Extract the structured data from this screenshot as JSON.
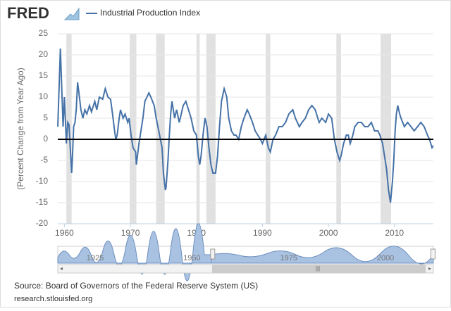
{
  "logo": "FRED",
  "chart_data": {
    "type": "line",
    "y_axis_label": "(Percent Change from Year Ago)",
    "series": [
      {
        "name": "Industrial Production Index",
        "color": "#4572a7",
        "x": [
          1959.0,
          1959.4,
          1959.8,
          1960.0,
          1960.3,
          1960.5,
          1960.7,
          1961.1,
          1961.2,
          1961.4,
          1961.6,
          1961.8,
          1962.0,
          1962.2,
          1962.5,
          1962.8,
          1963.1,
          1963.4,
          1963.8,
          1964.1,
          1964.6,
          1964.9,
          1965.3,
          1965.8,
          1966.2,
          1966.6,
          1967.0,
          1967.3,
          1967.6,
          1967.8,
          1968.0,
          1968.3,
          1968.5,
          1968.9,
          1969.2,
          1969.6,
          1969.8,
          1970.1,
          1970.4,
          1970.8,
          1970.9,
          1971.3,
          1971.6,
          1971.9,
          1972.2,
          1972.5,
          1972.8,
          1973.1,
          1973.6,
          1973.9,
          1974.3,
          1974.8,
          1975.0,
          1975.3,
          1975.4,
          1975.7,
          1975.9,
          1976.1,
          1976.3,
          1976.7,
          1977.0,
          1977.4,
          1977.7,
          1978.0,
          1978.4,
          1978.8,
          1979.2,
          1979.6,
          1980.0,
          1980.3,
          1980.5,
          1980.7,
          1981.0,
          1981.3,
          1981.6,
          1981.9,
          1982.2,
          1982.5,
          1982.9,
          1983.2,
          1983.5,
          1983.8,
          1984.2,
          1984.6,
          1984.9,
          1985.3,
          1985.7,
          1986.0,
          1986.4,
          1986.8,
          1987.2,
          1987.7,
          1988.0,
          1988.5,
          1988.9,
          1989.3,
          1989.7,
          1990.0,
          1990.5,
          1990.9,
          1991.2,
          1991.6,
          1992.0,
          1992.5,
          1993.0,
          1993.5,
          1994.0,
          1994.6,
          1995.0,
          1995.6,
          1996.0,
          1996.5,
          1997.0,
          1997.5,
          1998.0,
          1998.6,
          1999.0,
          1999.6,
          2000.0,
          2000.5,
          2000.9,
          2001.3,
          2001.7,
          2001.9,
          2002.3,
          2002.7,
          2003.0,
          2003.3,
          2003.7,
          2004.0,
          2004.5,
          2005.0,
          2005.5,
          2006.0,
          2006.5,
          2007.0,
          2007.5,
          2007.8,
          2008.2,
          2008.5,
          2008.8,
          2009.1,
          2009.4,
          2009.7,
          2009.9,
          2010.1,
          2010.3,
          2010.5,
          2010.8,
          2011.0,
          2011.5,
          2012.0,
          2012.5,
          2013.0,
          2013.5,
          2014.0,
          2014.5,
          2015.0,
          2015.3,
          2015.5,
          2015.7,
          2015.9
        ],
        "values": [
          3,
          21.5,
          3,
          10,
          -1,
          4,
          3.5,
          -8,
          -5,
          3,
          4,
          7,
          13.5,
          11,
          7,
          5,
          7,
          6,
          8,
          6.5,
          9,
          7,
          10,
          9.5,
          12,
          10,
          9.5,
          6,
          2,
          0,
          1,
          5,
          7,
          5,
          6,
          4,
          5,
          1,
          -2,
          -3,
          -6,
          -1,
          2,
          5,
          9,
          10,
          11,
          10,
          8,
          5,
          2,
          -2,
          -8,
          -12,
          -11.5,
          -5,
          1,
          6,
          9,
          5,
          7,
          4,
          6,
          8,
          9,
          7,
          5,
          2,
          1,
          -4,
          -6,
          -4,
          1,
          5,
          3,
          -2,
          -6,
          -8,
          -8,
          -4,
          3,
          9,
          12,
          10,
          5,
          2,
          1,
          1,
          0,
          3,
          5,
          7,
          6,
          4,
          2,
          1,
          0,
          -1,
          1,
          -2,
          -3,
          0,
          1,
          3,
          3,
          4,
          6,
          7,
          5,
          3,
          4,
          5,
          7,
          8,
          7,
          4,
          5,
          4,
          6,
          5,
          0,
          -3,
          -5,
          -4,
          -1,
          1,
          1,
          -1,
          1,
          3,
          4,
          4,
          3,
          3,
          4,
          2,
          2,
          1,
          -1,
          -4,
          -7,
          -12,
          -15,
          -10,
          -5,
          2,
          6,
          8,
          6,
          5,
          3,
          4,
          3,
          2,
          3,
          4,
          3,
          1,
          0,
          -1,
          -2,
          -1.5
        ]
      }
    ],
    "recessions": [
      [
        1960.3,
        1961.1
      ],
      [
        1969.9,
        1970.9
      ],
      [
        1973.9,
        1975.2
      ],
      [
        1980.0,
        1980.5
      ],
      [
        1981.5,
        1982.9
      ],
      [
        1990.5,
        1991.2
      ],
      [
        2001.2,
        2001.9
      ],
      [
        2007.9,
        2009.5
      ]
    ],
    "xlim": [
      1959.0,
      2015.9
    ],
    "xticks": [
      1960,
      1970,
      1980,
      1990,
      2000,
      2010
    ],
    "ylim": [
      -20,
      25
    ],
    "yticks": [
      25,
      20,
      15,
      10,
      5,
      0,
      -5,
      -10,
      -15,
      -20
    ],
    "grid": true,
    "navigator": {
      "xlim": [
        1919,
        2016
      ],
      "xticks": [
        1925,
        1950,
        1975,
        2000
      ],
      "selected": [
        1959.0,
        2015.9
      ]
    }
  },
  "source": "Source: Board of Governors of the Federal Reserve System (US)",
  "site": "research.stlouisfed.org"
}
